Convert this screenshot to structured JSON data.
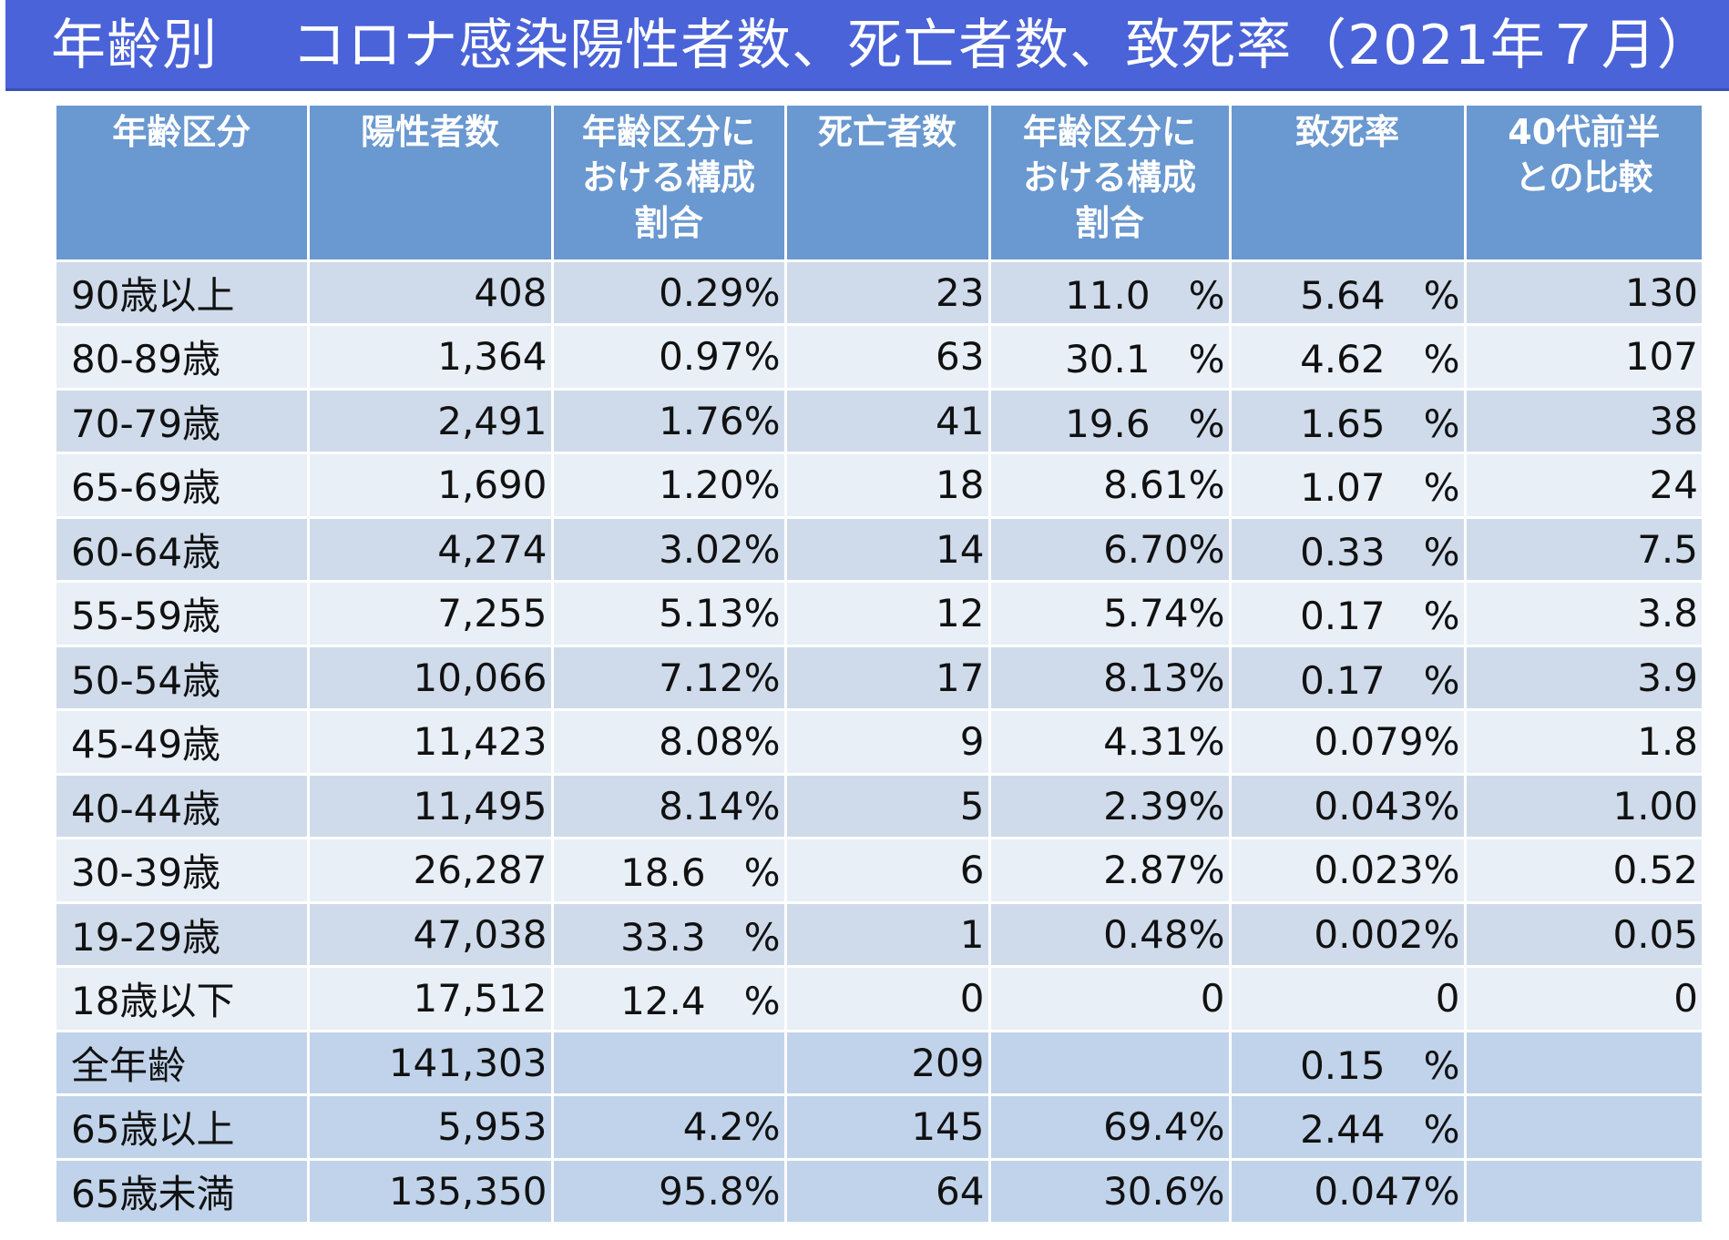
{
  "title": "年齢別　 コロナ感染陽性者数、死亡者数、致死率（2021年７月）",
  "table": {
    "headers": [
      "年齢区分",
      "陽性者数",
      "年齢区分に\nおける構成\n割合",
      "死亡者数",
      "年齢区分に\nおける構成\n割合",
      "致死率",
      "40代前半\nとの比較"
    ],
    "rows": [
      [
        "90歳以上",
        "408",
        "0.29%",
        "23",
        "11.0　%",
        "5.64　%",
        "130"
      ],
      [
        "80-89歳",
        "1,364",
        "0.97%",
        "63",
        "30.1　%",
        "4.62　%",
        "107"
      ],
      [
        "70-79歳",
        "2,491",
        "1.76%",
        "41",
        "19.6　%",
        "1.65　%",
        "38"
      ],
      [
        "65-69歳",
        "1,690",
        "1.20%",
        "18",
        "8.61%",
        "1.07　%",
        "24"
      ],
      [
        "60-64歳",
        "4,274",
        "3.02%",
        "14",
        "6.70%",
        "0.33　%",
        "7.5"
      ],
      [
        "55-59歳",
        "7,255",
        "5.13%",
        "12",
        "5.74%",
        "0.17　%",
        "3.8"
      ],
      [
        "50-54歳",
        "10,066",
        "7.12%",
        "17",
        "8.13%",
        "0.17　%",
        "3.9"
      ],
      [
        "45-49歳",
        "11,423",
        "8.08%",
        "9",
        "4.31%",
        "0.079%",
        "1.8"
      ],
      [
        "40-44歳",
        "11,495",
        "8.14%",
        "5",
        "2.39%",
        "0.043%",
        "1.00"
      ],
      [
        "30-39歳",
        "26,287",
        "18.6　%",
        "6",
        "2.87%",
        "0.023%",
        "0.52"
      ],
      [
        "19-29歳",
        "47,038",
        "33.3　%",
        "1",
        "0.48%",
        "0.002%",
        "0.05"
      ],
      [
        "18歳以下",
        "17,512",
        "12.4　%",
        "0",
        "0",
        "0",
        "0"
      ],
      [
        "全年齢",
        "141,303",
        "",
        "209",
        "",
        "0.15　%",
        ""
      ],
      [
        "65歳以上",
        "5,953",
        "4.2%",
        "145",
        "69.4%",
        "2.44　%",
        ""
      ],
      [
        "65歳未満",
        "135,350",
        "95.8%",
        "64",
        "30.6%",
        "0.047%",
        ""
      ]
    ]
  }
}
